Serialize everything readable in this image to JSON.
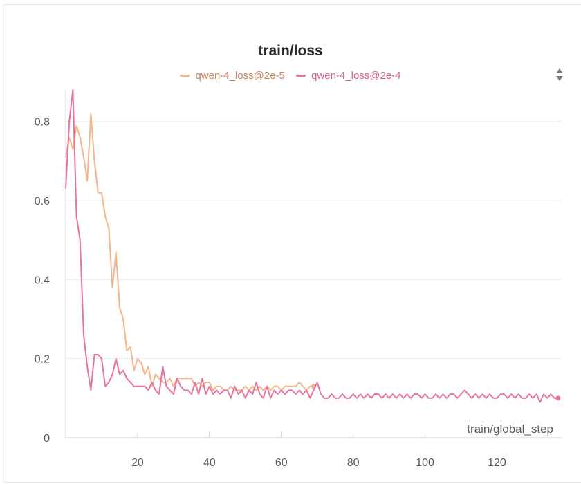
{
  "panel": {
    "icons": {
      "sort": "sort-up-down-icon"
    }
  },
  "chart_data": {
    "type": "line",
    "title": "train/loss",
    "xlabel": "train/global_step",
    "ylabel": "",
    "xlim": [
      0,
      138
    ],
    "ylim": [
      0,
      0.88
    ],
    "x_ticks": [
      "20",
      "40",
      "60",
      "80",
      "100",
      "120"
    ],
    "y_ticks": [
      "0",
      "0.2",
      "0.4",
      "0.6",
      "0.8"
    ],
    "grid": true,
    "legend_position": "top",
    "series": [
      {
        "name": "qwen-4_loss@2e-5",
        "color": "#f2b68e",
        "x_start": 0,
        "values": [
          0.71,
          0.76,
          0.73,
          0.79,
          0.76,
          0.71,
          0.65,
          0.82,
          0.7,
          0.62,
          0.62,
          0.56,
          0.53,
          0.38,
          0.47,
          0.33,
          0.3,
          0.22,
          0.23,
          0.17,
          0.2,
          0.19,
          0.16,
          0.18,
          0.13,
          0.16,
          0.15,
          0.14,
          0.14,
          0.15,
          0.13,
          0.15,
          0.15,
          0.15,
          0.15,
          0.15,
          0.13,
          0.14,
          0.13,
          0.14,
          0.14,
          0.12,
          0.13,
          0.13,
          0.12,
          0.12,
          0.13,
          0.12,
          0.12,
          0.12,
          0.13,
          0.12,
          0.13,
          0.12,
          0.13,
          0.12,
          0.13,
          0.12,
          0.13,
          0.13,
          0.12,
          0.13,
          0.13,
          0.13,
          0.13,
          0.14,
          0.13,
          0.12,
          0.13,
          0.13
        ]
      },
      {
        "name": "qwen-4_loss@2e-4",
        "color": "#e8739c",
        "x_start": 0,
        "values": [
          0.63,
          0.8,
          0.88,
          0.56,
          0.5,
          0.26,
          0.18,
          0.12,
          0.21,
          0.21,
          0.2,
          0.13,
          0.14,
          0.16,
          0.2,
          0.16,
          0.17,
          0.15,
          0.14,
          0.13,
          0.13,
          0.13,
          0.13,
          0.12,
          0.14,
          0.12,
          0.11,
          0.18,
          0.13,
          0.12,
          0.11,
          0.15,
          0.13,
          0.12,
          0.12,
          0.11,
          0.14,
          0.11,
          0.15,
          0.11,
          0.13,
          0.11,
          0.12,
          0.11,
          0.12,
          0.12,
          0.1,
          0.13,
          0.11,
          0.12,
          0.1,
          0.12,
          0.11,
          0.14,
          0.11,
          0.1,
          0.13,
          0.1,
          0.12,
          0.11,
          0.12,
          0.11,
          0.12,
          0.12,
          0.11,
          0.12,
          0.11,
          0.12,
          0.1,
          0.12,
          0.14,
          0.11,
          0.1,
          0.1,
          0.11,
          0.1,
          0.1,
          0.11,
          0.1,
          0.1,
          0.11,
          0.1,
          0.11,
          0.1,
          0.11,
          0.1,
          0.11,
          0.11,
          0.1,
          0.11,
          0.1,
          0.11,
          0.1,
          0.11,
          0.1,
          0.11,
          0.1,
          0.11,
          0.11,
          0.1,
          0.11,
          0.1,
          0.1,
          0.11,
          0.1,
          0.11,
          0.1,
          0.11,
          0.11,
          0.1,
          0.11,
          0.12,
          0.11,
          0.1,
          0.11,
          0.1,
          0.11,
          0.1,
          0.11,
          0.1,
          0.1,
          0.11,
          0.11,
          0.1,
          0.11,
          0.1,
          0.11,
          0.1,
          0.1,
          0.11,
          0.1,
          0.11,
          0.09,
          0.11,
          0.1,
          0.11,
          0.1,
          0.1
        ]
      }
    ]
  }
}
